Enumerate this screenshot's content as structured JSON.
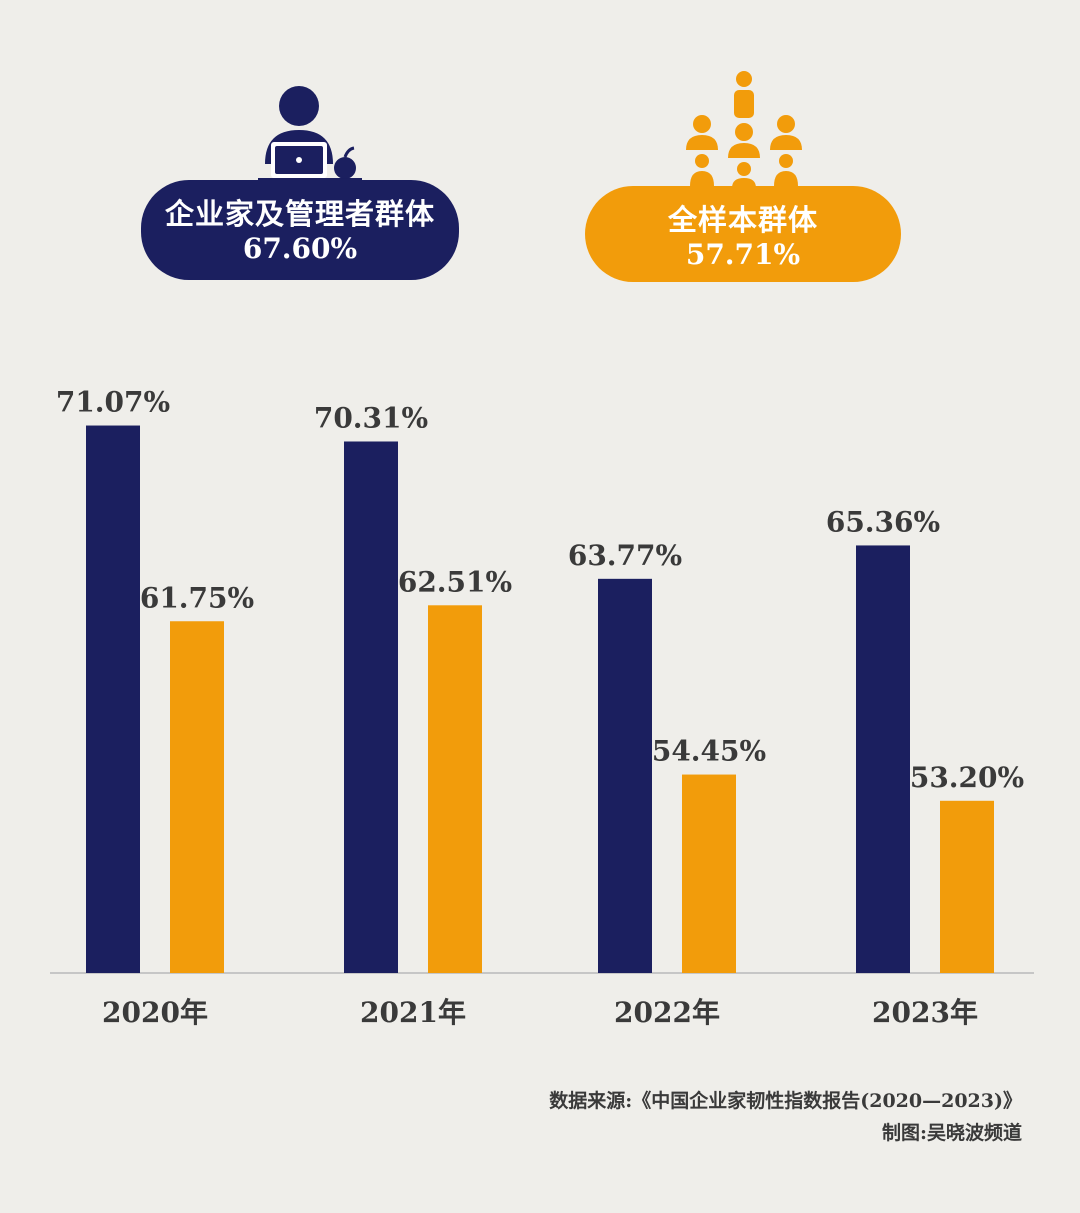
{
  "colors": {
    "background": "#efeeea",
    "navy": "#1b1f5f",
    "orange": "#f29c0b",
    "text": "#3a3a3a",
    "axis": "#b9b9b9"
  },
  "legend": {
    "managers": {
      "icon": "person-at-laptop-icon",
      "name": "企业家及管理者群体",
      "value": "67.60%",
      "color": "#1b1f5f"
    },
    "all": {
      "icon": "group-of-people-icon",
      "name": "全样本群体",
      "value": "57.71%",
      "color": "#f29c0b"
    }
  },
  "chart_data": {
    "type": "bar",
    "categories": [
      "2020年",
      "2021年",
      "2022年",
      "2023年"
    ],
    "series": [
      {
        "name": "企业家及管理者群体",
        "color": "#1b1f5f",
        "values": [
          71.07,
          70.31,
          63.77,
          65.36
        ],
        "labels": [
          "71.07%",
          "70.31%",
          "63.77%",
          "65.36%"
        ]
      },
      {
        "name": "全样本群体",
        "color": "#f29c0b",
        "values": [
          61.75,
          62.51,
          54.45,
          53.2
        ],
        "labels": [
          "61.75%",
          "62.51%",
          "54.45%",
          "53.20%"
        ]
      }
    ],
    "ylim": [
      45,
      73
    ],
    "grid": false,
    "legend_position": "top"
  },
  "footer": {
    "source": "数据来源:《中国企业家韧性指数报告(2020—2023)》",
    "credit": "制图:吴晓波频道"
  }
}
